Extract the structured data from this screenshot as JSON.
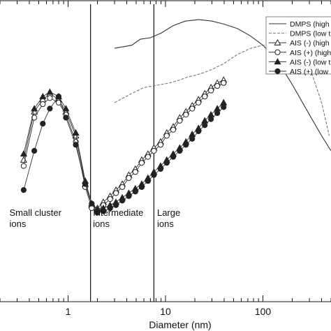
{
  "chart_data": {
    "type": "line",
    "xlabel": "Diameter (nm)",
    "ylabel": "",
    "xscale": "log",
    "xlim": [
      0.2,
      500
    ],
    "ylim": [
      0,
      1
    ],
    "grid": false,
    "x_ticks": [
      {
        "value": 1,
        "label": "1"
      },
      {
        "value": 10,
        "label": "10"
      },
      {
        "value": 100,
        "label": "100"
      }
    ],
    "vlines": [
      1.7,
      7.6
    ],
    "annotations": [
      {
        "id": "small",
        "lines": [
          "Small cluster",
          "ions"
        ],
        "x": 0.25,
        "y": 0.285
      },
      {
        "id": "intermediate",
        "lines": [
          "Intermediate",
          "ions"
        ],
        "x": 1.8,
        "y": 0.285
      },
      {
        "id": "large",
        "lines": [
          "Large",
          "ions"
        ],
        "x": 8.2,
        "y": 0.285
      }
    ],
    "legend": {
      "position": "top-right",
      "entries": [
        {
          "label": "DMPS (high",
          "style": "solid",
          "marker": "none"
        },
        {
          "label": "DMPS (low t",
          "style": "dashed",
          "marker": "none"
        },
        {
          "label": "AIS (-) (high",
          "style": "solid",
          "marker": "open-triangle"
        },
        {
          "label": "AIS (+) (high",
          "style": "solid",
          "marker": "open-circle"
        },
        {
          "label": "AIS (-) (low t",
          "style": "solid",
          "marker": "filled-triangle"
        },
        {
          "label": "AIS (+) (low",
          "style": "solid",
          "marker": "filled-circle"
        }
      ]
    },
    "series": [
      {
        "key": "dmps_high",
        "style": "solid",
        "marker": "none",
        "x": [
          3.0,
          4.5,
          5.5,
          7.0,
          9.0,
          12,
          16,
          22,
          30,
          40,
          55,
          75,
          100,
          140,
          200,
          300,
          400,
          500
        ],
        "y": [
          0.84,
          0.85,
          0.87,
          0.875,
          0.89,
          0.915,
          0.93,
          0.935,
          0.93,
          0.92,
          0.905,
          0.88,
          0.85,
          0.8,
          0.72,
          0.62,
          0.55,
          0.5
        ]
      },
      {
        "key": "dmps_low",
        "style": "dashed",
        "marker": "none",
        "x": [
          3.0,
          4.5,
          6.0,
          7.5,
          9.0,
          11,
          14,
          17,
          20,
          25,
          30,
          40,
          55,
          75,
          100,
          130,
          170,
          230,
          300,
          400,
          480
        ],
        "y": [
          0.66,
          0.69,
          0.71,
          0.715,
          0.72,
          0.725,
          0.735,
          0.745,
          0.75,
          0.76,
          0.77,
          0.79,
          0.82,
          0.84,
          0.85,
          0.855,
          0.845,
          0.82,
          0.78,
          0.66,
          0.55
        ]
      },
      {
        "key": "ais_neg_high",
        "style": "solid",
        "marker": "open-triangle",
        "x": [
          0.35,
          0.45,
          0.55,
          0.65,
          0.8,
          0.95,
          1.2,
          1.5,
          1.75,
          2.0,
          2.3,
          2.7,
          3.1,
          3.6,
          4.2,
          4.9,
          5.7,
          6.6,
          7.6,
          8.9,
          10.3,
          12,
          14,
          16.2,
          18.8,
          21.8,
          25.3,
          29.3,
          34,
          39.5
        ],
        "y": [
          0.47,
          0.63,
          0.67,
          0.69,
          0.67,
          0.63,
          0.55,
          0.39,
          0.32,
          0.31,
          0.33,
          0.35,
          0.37,
          0.39,
          0.42,
          0.44,
          0.47,
          0.49,
          0.51,
          0.53,
          0.56,
          0.58,
          0.61,
          0.63,
          0.65,
          0.67,
          0.69,
          0.71,
          0.725,
          0.735
        ]
      },
      {
        "key": "ais_pos_high",
        "style": "solid",
        "marker": "open-circle",
        "x": [
          0.35,
          0.45,
          0.55,
          0.65,
          0.8,
          0.95,
          1.2,
          1.5,
          1.75,
          2.0,
          2.3,
          2.7,
          3.1,
          3.6,
          4.2,
          4.9,
          5.7,
          6.6,
          7.6,
          8.9,
          10.3,
          12,
          14,
          16.2,
          18.8,
          21.8,
          25.3,
          29.3,
          34,
          39.5
        ],
        "y": [
          0.45,
          0.61,
          0.655,
          0.675,
          0.66,
          0.62,
          0.53,
          0.38,
          0.31,
          0.3,
          0.32,
          0.34,
          0.36,
          0.38,
          0.41,
          0.43,
          0.46,
          0.48,
          0.5,
          0.52,
          0.55,
          0.57,
          0.6,
          0.62,
          0.64,
          0.66,
          0.68,
          0.7,
          0.715,
          0.725
        ]
      },
      {
        "key": "ais_neg_low",
        "style": "solid",
        "marker": "filled-triangle",
        "x": [
          0.35,
          0.45,
          0.55,
          0.65,
          0.8,
          0.95,
          1.2,
          1.5,
          1.75,
          2.0,
          2.3,
          2.7,
          3.1,
          3.6,
          4.2,
          4.9,
          5.7,
          6.6,
          7.6,
          8.9,
          10.3,
          12,
          14,
          16.2,
          18.8,
          21.8,
          25.3,
          29.3,
          34,
          39.5
        ],
        "y": [
          0.49,
          0.64,
          0.68,
          0.695,
          0.68,
          0.64,
          0.56,
          0.4,
          0.325,
          0.305,
          0.31,
          0.32,
          0.33,
          0.345,
          0.36,
          0.375,
          0.39,
          0.41,
          0.43,
          0.45,
          0.47,
          0.49,
          0.51,
          0.53,
          0.555,
          0.575,
          0.6,
          0.62,
          0.64,
          0.66
        ]
      },
      {
        "key": "ais_pos_low",
        "style": "solid",
        "marker": "filled-circle",
        "x": [
          0.35,
          0.45,
          0.55,
          0.65,
          0.8,
          0.95,
          1.2,
          1.5,
          1.75,
          2.0,
          2.3,
          2.7,
          3.1,
          3.6,
          4.2,
          4.9,
          5.7,
          6.6,
          7.6,
          8.9,
          10.3,
          12,
          14,
          16.2,
          18.8,
          21.8,
          25.3,
          29.3,
          34,
          39.5
        ],
        "y": [
          0.37,
          0.5,
          0.59,
          0.64,
          0.68,
          0.61,
          0.52,
          0.39,
          0.325,
          0.295,
          0.3,
          0.31,
          0.32,
          0.335,
          0.35,
          0.365,
          0.38,
          0.4,
          0.42,
          0.44,
          0.46,
          0.48,
          0.5,
          0.52,
          0.54,
          0.565,
          0.585,
          0.605,
          0.625,
          0.645
        ]
      }
    ]
  }
}
